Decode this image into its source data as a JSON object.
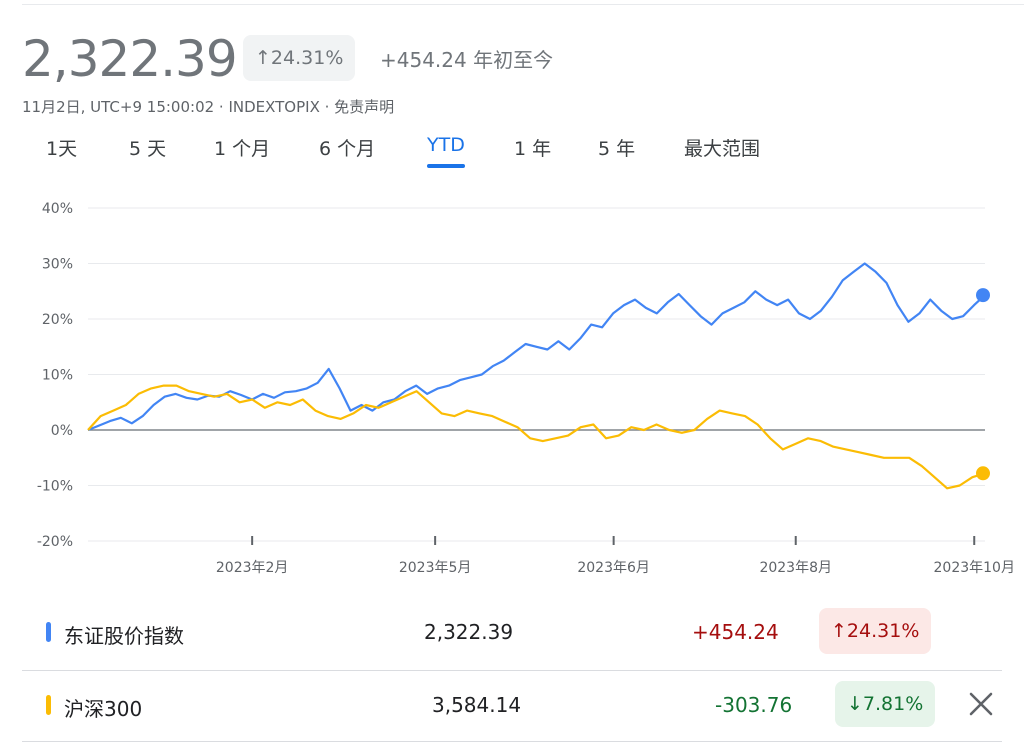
{
  "header": {
    "price": "2,322.39",
    "pct_chip": "↑24.31%",
    "change": "+454.24 年初至今",
    "meta": "11月2日, UTC+9 15:00:02 · INDEXTOPIX · 免责声明"
  },
  "tabs": [
    {
      "label": "1天"
    },
    {
      "label": "5 天"
    },
    {
      "label": "1 个月"
    },
    {
      "label": "6 个月"
    },
    {
      "label": "YTD",
      "active": true
    },
    {
      "label": "1 年"
    },
    {
      "label": "5 年"
    },
    {
      "label": "最大范围"
    }
  ],
  "legend": [
    {
      "name": "东证股价指数",
      "value": "2,322.39",
      "change": "+454.24",
      "percent": "↑24.31%",
      "color": "#4285f4",
      "change_color": "#a50e0e",
      "chip_bg": "#fce8e6"
    },
    {
      "name": "沪深300",
      "value": "3,584.14",
      "change": "-303.76",
      "percent": "↓7.81%",
      "color": "#fbbc04",
      "change_color": "#137333",
      "chip_bg": "#e6f4ea",
      "close_icon": "close-icon"
    }
  ],
  "chart_data": {
    "type": "line",
    "y_ticks": [
      "40%",
      "30%",
      "20%",
      "10%",
      "0%",
      "-10%",
      "-20%"
    ],
    "ylim": [
      -20,
      40
    ],
    "x_ticks": [
      "2023年2月",
      "2023年5月",
      "2023年6月",
      "2023年8月",
      "2023年10月"
    ],
    "series": [
      {
        "name": "东证股价指数",
        "color": "#4285f4",
        "values": [
          0,
          0.8,
          1.6,
          2.2,
          1.2,
          2.5,
          4.5,
          6.0,
          6.5,
          5.8,
          5.5,
          6.2,
          6.0,
          7.0,
          6.3,
          5.5,
          6.5,
          5.8,
          6.8,
          7.0,
          7.5,
          8.5,
          11.0,
          7.5,
          3.5,
          4.5,
          3.5,
          5.0,
          5.5,
          7.0,
          8.0,
          6.5,
          7.5,
          8.0,
          9.0,
          9.5,
          10.0,
          11.5,
          12.5,
          14.0,
          15.5,
          15.0,
          14.5,
          16.0,
          14.5,
          16.5,
          19.0,
          18.5,
          21.0,
          22.5,
          23.5,
          22.0,
          21.0,
          23.0,
          24.5,
          22.5,
          20.5,
          19.0,
          21.0,
          22.0,
          23.0,
          25.0,
          23.5,
          22.5,
          23.5,
          21.0,
          20.0,
          21.5,
          24.0,
          27.0,
          28.5,
          30.0,
          28.5,
          26.5,
          22.5,
          19.5,
          21.0,
          23.5,
          21.5,
          20.0,
          20.5,
          22.5,
          24.3
        ]
      },
      {
        "name": "沪深300",
        "color": "#fbbc04",
        "values": [
          0,
          2.5,
          3.5,
          4.5,
          6.5,
          7.5,
          8.0,
          8.0,
          7.0,
          6.5,
          6.0,
          6.5,
          5.0,
          5.5,
          4.0,
          5.0,
          4.5,
          5.5,
          3.5,
          2.5,
          2.0,
          3.0,
          4.5,
          4.0,
          5.0,
          6.0,
          7.0,
          5.0,
          3.0,
          2.5,
          3.5,
          3.0,
          2.5,
          1.5,
          0.5,
          -1.5,
          -2.0,
          -1.5,
          -1.0,
          0.5,
          1.0,
          -1.5,
          -1.0,
          0.5,
          0,
          1.0,
          0,
          -0.5,
          0,
          2.0,
          3.5,
          3.0,
          2.5,
          1.0,
          -1.5,
          -3.5,
          -2.5,
          -1.5,
          -2.0,
          -3.0,
          -3.5,
          -4.0,
          -4.5,
          -5.0,
          -5.0,
          -5.0,
          -6.5,
          -8.5,
          -10.5,
          -10.0,
          -8.5,
          -7.8
        ]
      }
    ]
  }
}
